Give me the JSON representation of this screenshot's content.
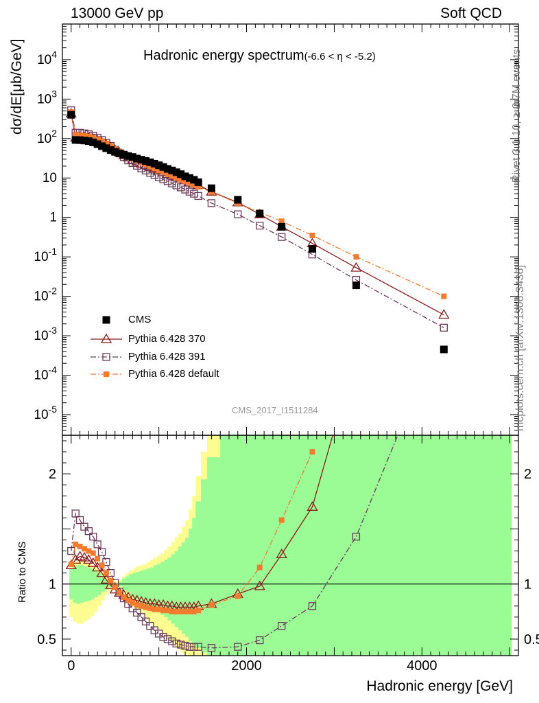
{
  "header": {
    "energy": "13000 GeV pp",
    "category": "Soft QCD"
  },
  "side_labels": {
    "rivet": "Rivet 3.1.10, ≥ 2.7M events",
    "mcplots": "mcplots.cern.ch [arXiv:1306.3436]"
  },
  "watermark": "CMS_2017_I1511284",
  "chart_data": [
    {
      "type": "scatter",
      "title": "Hadronic energy spectrum",
      "title_range": "(-6.6 < η < -5.2)",
      "ylabel": "dσ/dE[μb/GeV]",
      "yscale": "log",
      "ylim": [
        3e-06,
        80000
      ],
      "xlim": [
        -100,
        5100
      ],
      "legend_position": "bottom-left",
      "series": [
        {
          "name": "CMS",
          "color": "#000000",
          "marker": "filled-square",
          "x": [
            0,
            50,
            100,
            150,
            200,
            250,
            300,
            350,
            400,
            450,
            500,
            550,
            600,
            650,
            700,
            750,
            800,
            850,
            900,
            950,
            1000,
            1050,
            1100,
            1150,
            1200,
            1250,
            1300,
            1350,
            1400,
            1450,
            1600,
            1900,
            2150,
            2400,
            2750,
            3250,
            4250
          ],
          "y": [
            400,
            92,
            91,
            89,
            86,
            80,
            72,
            64,
            57,
            51,
            46,
            42,
            39,
            36,
            34,
            31,
            29,
            27,
            25,
            23,
            21,
            19,
            17,
            15.5,
            14,
            12.5,
            11,
            10,
            9,
            7.8,
            5.5,
            2.8,
            1.25,
            0.58,
            0.16,
            0.019,
            0.00045
          ]
        },
        {
          "name": "Pythia 6.428 370",
          "color": "#8b1a1a",
          "marker": "open-triangle",
          "line": "solid",
          "x": [
            0,
            50,
            100,
            150,
            200,
            250,
            300,
            350,
            400,
            450,
            500,
            550,
            600,
            650,
            700,
            750,
            800,
            850,
            900,
            950,
            1000,
            1050,
            1100,
            1150,
            1200,
            1250,
            1300,
            1350,
            1400,
            1450,
            1600,
            1900,
            2150,
            2400,
            2750,
            3250,
            4250
          ],
          "y": [
            430,
            105,
            110,
            108,
            104,
            98,
            89,
            79,
            69,
            60,
            51,
            44,
            38,
            33,
            29,
            26,
            23,
            21,
            19,
            17,
            15.5,
            14,
            12.5,
            11.5,
            10.5,
            9.6,
            8.8,
            8,
            7.3,
            6.6,
            4.5,
            2.4,
            1.2,
            0.58,
            0.22,
            0.053,
            0.0034
          ]
        },
        {
          "name": "Pythia 6.428 391",
          "color": "#6b3a5a",
          "marker": "open-square",
          "line": "dash-dot",
          "x": [
            0,
            50,
            100,
            150,
            200,
            250,
            300,
            350,
            400,
            450,
            500,
            550,
            600,
            650,
            700,
            750,
            800,
            850,
            900,
            950,
            1000,
            1050,
            1100,
            1150,
            1200,
            1250,
            1300,
            1350,
            1400,
            1450,
            1600,
            1900,
            2150,
            2400,
            2750,
            3250,
            4250
          ],
          "y": [
            520,
            140,
            140,
            135,
            128,
            118,
            105,
            92,
            78,
            65,
            52,
            42,
            34,
            28,
            24,
            20.5,
            17.5,
            15.5,
            13.5,
            12,
            10.5,
            9.3,
            8.3,
            7.3,
            6.5,
            5.8,
            5.1,
            4.5,
            4,
            3.5,
            2.3,
            1.2,
            0.62,
            0.32,
            0.115,
            0.026,
            0.0016
          ]
        },
        {
          "name": "Pythia 6.428 default",
          "color": "#f47a2e",
          "marker": "filled-square-small",
          "line": "dash-dot",
          "x": [
            0,
            50,
            100,
            150,
            200,
            250,
            300,
            350,
            400,
            450,
            500,
            550,
            600,
            650,
            700,
            750,
            800,
            850,
            900,
            950,
            1000,
            1050,
            1100,
            1150,
            1200,
            1250,
            1300,
            1350,
            1400,
            1450,
            1600,
            1900,
            2150,
            2400,
            2750,
            3250,
            4250
          ],
          "y": [
            470,
            125,
            122,
            118,
            113,
            106,
            96,
            86,
            75,
            65,
            55,
            47,
            41,
            35,
            31,
            27.5,
            24.5,
            22,
            19.5,
            17.5,
            15.5,
            14,
            12.5,
            11.2,
            10,
            9,
            8.2,
            7.4,
            6.7,
            6,
            4.4,
            2.3,
            1.35,
            0.8,
            0.35,
            0.1,
            0.01
          ]
        }
      ]
    },
    {
      "type": "line",
      "ylabel": "Ratio to CMS",
      "xlabel": "Hadronic energy [GeV]",
      "ylim": [
        0.35,
        2.35
      ],
      "xlim": [
        -100,
        5100
      ],
      "reference_line": 1,
      "uncertainty_bands": {
        "colors": {
          "inner": "#9bfb95",
          "outer": "#fcfc90"
        },
        "edges": [
          -20,
          20,
          60,
          100,
          140,
          180,
          220,
          260,
          300,
          340,
          380,
          420,
          460,
          500,
          540,
          580,
          620,
          660,
          700,
          740,
          780,
          820,
          860,
          900,
          940,
          980,
          1020,
          1060,
          1100,
          1140,
          1180,
          1220,
          1260,
          1300,
          1340,
          1380,
          1420,
          1480,
          1550,
          1700,
          1850,
          2000,
          2250,
          2600,
          5020
        ],
        "inner_hi": [
          1.14,
          1.16,
          1.17,
          1.17,
          1.16,
          1.15,
          1.14,
          1.12,
          1.1,
          1.07,
          1.05,
          1.03,
          1.01,
          1.0,
          1.02,
          1.05,
          1.07,
          1.09,
          1.1,
          1.11,
          1.12,
          1.13,
          1.14,
          1.15,
          1.17,
          1.18,
          1.2,
          1.22,
          1.24,
          1.27,
          1.3,
          1.34,
          1.38,
          1.42,
          1.5,
          1.6,
          1.75,
          1.95,
          2.15,
          2.4,
          2.4,
          2.4,
          2.4,
          2.4
        ],
        "inner_lo": [
          0.86,
          0.83,
          0.82,
          0.83,
          0.84,
          0.85,
          0.86,
          0.88,
          0.9,
          0.93,
          0.95,
          0.97,
          0.99,
          1.0,
          0.98,
          0.95,
          0.93,
          0.9,
          0.88,
          0.86,
          0.84,
          0.82,
          0.8,
          0.78,
          0.76,
          0.74,
          0.72,
          0.7,
          0.67,
          0.64,
          0.61,
          0.58,
          0.55,
          0.52,
          0.48,
          0.45,
          0.42,
          0.38,
          0.35,
          0.35,
          0.35,
          0.35,
          0.35,
          0.35
        ],
        "outer_hi": [
          1.18,
          1.2,
          1.21,
          1.21,
          1.2,
          1.19,
          1.17,
          1.15,
          1.12,
          1.09,
          1.06,
          1.04,
          1.02,
          1.02,
          1.04,
          1.07,
          1.1,
          1.12,
          1.14,
          1.16,
          1.17,
          1.18,
          1.2,
          1.22,
          1.24,
          1.26,
          1.28,
          1.31,
          1.34,
          1.38,
          1.42,
          1.46,
          1.52,
          1.58,
          1.68,
          1.8,
          1.98,
          2.2,
          2.4,
          2.4,
          2.4,
          2.4,
          2.4,
          2.4
        ],
        "outer_lo": [
          0.7,
          0.66,
          0.64,
          0.64,
          0.66,
          0.68,
          0.71,
          0.75,
          0.8,
          0.85,
          0.9,
          0.94,
          0.97,
          0.98,
          0.95,
          0.9,
          0.86,
          0.82,
          0.79,
          0.76,
          0.73,
          0.7,
          0.67,
          0.64,
          0.61,
          0.58,
          0.55,
          0.52,
          0.49,
          0.46,
          0.43,
          0.4,
          0.37,
          0.35,
          0.35,
          0.35,
          0.35,
          0.35,
          0.35,
          0.35,
          0.35,
          0.35,
          0.35,
          0.35
        ]
      },
      "series": [
        {
          "name": "Pythia 6.428 370",
          "color": "#8b1a1a",
          "marker": "open-triangle",
          "line": "solid",
          "x": [
            0,
            50,
            100,
            150,
            200,
            250,
            300,
            350,
            400,
            450,
            500,
            550,
            600,
            650,
            700,
            750,
            800,
            850,
            900,
            950,
            1000,
            1050,
            1100,
            1150,
            1200,
            1250,
            1300,
            1350,
            1400,
            1450,
            1600,
            1900,
            2150,
            2400,
            2750,
            3000
          ],
          "y": [
            1.17,
            1.22,
            1.25,
            1.24,
            1.22,
            1.19,
            1.15,
            1.1,
            1.04,
            0.99,
            0.95,
            0.92,
            0.9,
            0.88,
            0.86,
            0.85,
            0.84,
            0.83,
            0.82,
            0.82,
            0.81,
            0.81,
            0.8,
            0.8,
            0.79,
            0.79,
            0.79,
            0.79,
            0.79,
            0.8,
            0.82,
            0.91,
            0.98,
            1.27,
            1.7,
            2.4
          ]
        },
        {
          "name": "Pythia 6.428 391",
          "color": "#6b3a5a",
          "marker": "open-square",
          "line": "dash-dot",
          "x": [
            0,
            50,
            100,
            150,
            200,
            250,
            300,
            350,
            400,
            450,
            500,
            550,
            600,
            650,
            700,
            750,
            800,
            850,
            900,
            950,
            1000,
            1050,
            1100,
            1150,
            1200,
            1250,
            1300,
            1350,
            1400,
            1450,
            1600,
            1900,
            2150,
            2400,
            2750,
            3250,
            3750
          ],
          "y": [
            1.3,
            1.64,
            1.58,
            1.52,
            1.48,
            1.43,
            1.36,
            1.29,
            1.2,
            1.1,
            1.01,
            0.93,
            0.87,
            0.82,
            0.78,
            0.74,
            0.7,
            0.66,
            0.62,
            0.58,
            0.55,
            0.52,
            0.5,
            0.48,
            0.46,
            0.45,
            0.44,
            0.43,
            0.43,
            0.43,
            0.42,
            0.43,
            0.49,
            0.62,
            0.8,
            1.43,
            2.4
          ]
        },
        {
          "name": "Pythia 6.428 default",
          "color": "#f47a2e",
          "marker": "filled-square-small",
          "line": "dash-dot",
          "x": [
            0,
            50,
            100,
            150,
            200,
            250,
            300,
            350,
            400,
            450,
            500,
            550,
            600,
            650,
            700,
            750,
            800,
            850,
            900,
            950,
            1000,
            1050,
            1100,
            1150,
            1200,
            1250,
            1300,
            1350,
            1400,
            1450,
            1600,
            1900,
            2150,
            2400,
            2750
          ],
          "y": [
            1.18,
            1.36,
            1.34,
            1.32,
            1.3,
            1.28,
            1.23,
            1.17,
            1.1,
            1.03,
            0.97,
            0.92,
            0.88,
            0.85,
            0.83,
            0.81,
            0.8,
            0.79,
            0.78,
            0.77,
            0.77,
            0.76,
            0.76,
            0.75,
            0.75,
            0.75,
            0.75,
            0.75,
            0.75,
            0.76,
            0.81,
            0.89,
            1.15,
            1.58,
            2.2
          ]
        }
      ]
    }
  ]
}
